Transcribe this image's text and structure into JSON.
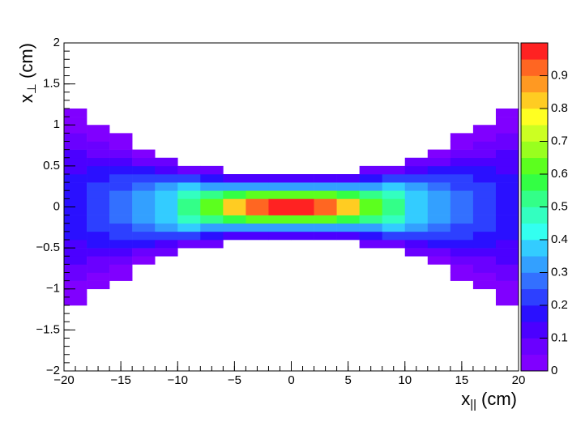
{
  "chart_data": {
    "type": "heatmap",
    "xlabel": {
      "symbol": "x",
      "subscript": "||",
      "unit": "(cm)"
    },
    "ylabel": {
      "symbol": "x",
      "subscript": "⊥",
      "unit": "(cm)"
    },
    "xlim": [
      -20,
      20
    ],
    "ylim": [
      -2,
      2
    ],
    "zlim": [
      0,
      1
    ],
    "xticks": [
      {
        "value": -20,
        "label": "−20"
      },
      {
        "value": -15,
        "label": "−15"
      },
      {
        "value": -10,
        "label": "−10"
      },
      {
        "value": -5,
        "label": "−5"
      },
      0,
      5,
      10,
      15,
      20
    ],
    "yticks": [
      {
        "value": -2,
        "label": "−2"
      },
      {
        "value": -1.5,
        "label": "−1.5"
      },
      {
        "value": -1,
        "label": "−1"
      },
      {
        "value": -0.5,
        "label": "−0.5"
      },
      0,
      0.5,
      1,
      1.5,
      2
    ],
    "zticks": [
      0,
      0.1,
      0.2,
      0.3,
      0.4,
      0.5,
      0.6,
      0.7,
      0.8,
      0.9
    ],
    "palette": [
      "#8000ff",
      "#6a00ff",
      "#4b00ff",
      "#2a10ff",
      "#2d40ff",
      "#3370ff",
      "#33a0ff",
      "#33ccff",
      "#33fff0",
      "#33ffc0",
      "#33ff88",
      "#33ff44",
      "#5cff1e",
      "#99ff1e",
      "#ccff22",
      "#ffff22",
      "#ffcc22",
      "#ff9922",
      "#ff6622",
      "#ff2222"
    ],
    "xbins": [
      -20,
      -18,
      -16,
      -14,
      -12,
      -10,
      -8,
      -6,
      -4,
      -2,
      0,
      2,
      4,
      6,
      8,
      10,
      12,
      14,
      16,
      18,
      20
    ],
    "ybins": [
      -1.4,
      -1.3,
      -1.2,
      -1.1,
      -1.0,
      -0.9,
      -0.8,
      -0.7,
      -0.6,
      -0.5,
      -0.4,
      -0.3,
      -0.2,
      -0.1,
      0,
      0.1,
      0.2,
      0.3,
      0.4,
      0.5,
      0.6,
      0.7,
      0.8,
      0.9,
      1.0,
      1.1,
      1.2,
      1.3,
      1.4
    ],
    "z": [
      [
        null,
        null,
        0.02,
        0.03,
        0.04,
        0.06,
        0.08,
        0.1,
        0.12,
        0.14,
        0.16,
        0.17,
        0.18,
        0.18,
        0.18,
        0.18,
        0.17,
        0.16,
        0.14,
        0.12,
        0.1,
        0.08,
        0.06,
        0.04,
        0.03,
        0.02,
        null,
        null
      ],
      [
        null,
        null,
        null,
        null,
        0.02,
        0.04,
        0.06,
        0.09,
        0.12,
        0.15,
        0.18,
        0.2,
        0.2,
        0.2,
        0.2,
        0.2,
        0.2,
        0.18,
        0.15,
        0.12,
        0.09,
        0.06,
        0.04,
        0.02,
        null,
        null,
        null,
        null
      ],
      [
        null,
        null,
        null,
        null,
        null,
        0.02,
        0.04,
        0.07,
        0.11,
        0.16,
        0.2,
        0.23,
        0.25,
        0.25,
        0.25,
        0.25,
        0.23,
        0.2,
        0.16,
        0.11,
        0.07,
        0.04,
        0.02,
        null,
        null,
        null,
        null,
        null
      ],
      [
        null,
        null,
        null,
        null,
        null,
        null,
        null,
        0.04,
        0.08,
        0.15,
        0.22,
        0.27,
        0.3,
        0.3,
        0.3,
        0.3,
        0.27,
        0.22,
        0.15,
        0.08,
        0.04,
        null,
        null,
        null,
        null,
        null,
        null,
        null
      ],
      [
        null,
        null,
        null,
        null,
        null,
        null,
        null,
        null,
        0.05,
        0.12,
        0.22,
        0.3,
        0.35,
        0.38,
        0.38,
        0.35,
        0.3,
        0.22,
        0.12,
        0.05,
        null,
        null,
        null,
        null,
        null,
        null,
        null,
        null
      ],
      [
        null,
        null,
        null,
        null,
        null,
        null,
        null,
        null,
        null,
        0.08,
        0.2,
        0.35,
        0.45,
        0.5,
        0.5,
        0.45,
        0.35,
        0.2,
        0.08,
        null,
        null,
        null,
        null,
        null,
        null,
        null,
        null,
        null
      ],
      [
        null,
        null,
        null,
        null,
        null,
        null,
        null,
        null,
        null,
        0.05,
        0.15,
        0.3,
        0.5,
        0.6,
        0.6,
        0.5,
        0.3,
        0.15,
        0.05,
        null,
        null,
        null,
        null,
        null,
        null,
        null,
        null,
        null
      ],
      [
        null,
        null,
        null,
        null,
        null,
        null,
        null,
        null,
        null,
        null,
        0.12,
        0.3,
        0.55,
        0.8,
        0.8,
        0.55,
        0.3,
        0.12,
        null,
        null,
        null,
        null,
        null,
        null,
        null,
        null,
        null,
        null
      ],
      [
        null,
        null,
        null,
        null,
        null,
        null,
        null,
        null,
        null,
        null,
        0.1,
        0.3,
        0.6,
        0.9,
        0.9,
        0.6,
        0.3,
        0.1,
        null,
        null,
        null,
        null,
        null,
        null,
        null,
        null,
        null,
        null
      ],
      [
        null,
        null,
        null,
        null,
        null,
        null,
        null,
        null,
        null,
        null,
        0.1,
        0.3,
        0.6,
        0.95,
        0.95,
        0.6,
        0.3,
        0.1,
        null,
        null,
        null,
        null,
        null,
        null,
        null,
        null,
        null,
        null
      ],
      [
        null,
        null,
        null,
        null,
        null,
        null,
        null,
        null,
        null,
        null,
        0.1,
        0.3,
        0.6,
        0.95,
        0.95,
        0.6,
        0.3,
        0.1,
        null,
        null,
        null,
        null,
        null,
        null,
        null,
        null,
        null,
        null
      ],
      [
        null,
        null,
        null,
        null,
        null,
        null,
        null,
        null,
        null,
        null,
        0.1,
        0.3,
        0.6,
        0.9,
        0.9,
        0.6,
        0.3,
        0.1,
        null,
        null,
        null,
        null,
        null,
        null,
        null,
        null,
        null,
        null
      ],
      [
        null,
        null,
        null,
        null,
        null,
        null,
        null,
        null,
        null,
        null,
        0.12,
        0.3,
        0.55,
        0.8,
        0.8,
        0.55,
        0.3,
        0.12,
        null,
        null,
        null,
        null,
        null,
        null,
        null,
        null,
        null,
        null
      ],
      [
        null,
        null,
        null,
        null,
        null,
        null,
        null,
        null,
        null,
        0.05,
        0.15,
        0.3,
        0.5,
        0.6,
        0.6,
        0.5,
        0.3,
        0.15,
        0.05,
        null,
        null,
        null,
        null,
        null,
        null,
        null,
        null,
        null
      ],
      [
        null,
        null,
        null,
        null,
        null,
        null,
        null,
        null,
        null,
        0.08,
        0.2,
        0.35,
        0.45,
        0.5,
        0.5,
        0.45,
        0.35,
        0.2,
        0.08,
        null,
        null,
        null,
        null,
        null,
        null,
        null,
        null,
        null
      ],
      [
        null,
        null,
        null,
        null,
        null,
        null,
        null,
        null,
        0.05,
        0.12,
        0.22,
        0.3,
        0.35,
        0.38,
        0.38,
        0.35,
        0.3,
        0.22,
        0.12,
        0.05,
        null,
        null,
        null,
        null,
        null,
        null,
        null,
        null
      ],
      [
        null,
        null,
        null,
        null,
        null,
        null,
        null,
        0.04,
        0.08,
        0.15,
        0.22,
        0.27,
        0.3,
        0.3,
        0.3,
        0.3,
        0.27,
        0.22,
        0.15,
        0.08,
        0.04,
        null,
        null,
        null,
        null,
        null,
        null,
        null
      ],
      [
        null,
        null,
        null,
        null,
        null,
        0.02,
        0.04,
        0.07,
        0.11,
        0.16,
        0.2,
        0.23,
        0.25,
        0.25,
        0.25,
        0.25,
        0.23,
        0.2,
        0.16,
        0.11,
        0.07,
        0.04,
        0.02,
        null,
        null,
        null,
        null,
        null
      ],
      [
        null,
        null,
        null,
        null,
        0.02,
        0.04,
        0.06,
        0.09,
        0.12,
        0.15,
        0.18,
        0.2,
        0.2,
        0.2,
        0.2,
        0.2,
        0.2,
        0.18,
        0.15,
        0.12,
        0.09,
        0.06,
        0.04,
        0.02,
        null,
        null,
        null,
        null
      ],
      [
        null,
        null,
        0.02,
        0.03,
        0.04,
        0.06,
        0.08,
        0.1,
        0.12,
        0.14,
        0.16,
        0.17,
        0.18,
        0.18,
        0.18,
        0.18,
        0.17,
        0.16,
        0.14,
        0.12,
        0.1,
        0.08,
        0.06,
        0.04,
        0.03,
        0.02,
        null,
        null
      ]
    ]
  }
}
